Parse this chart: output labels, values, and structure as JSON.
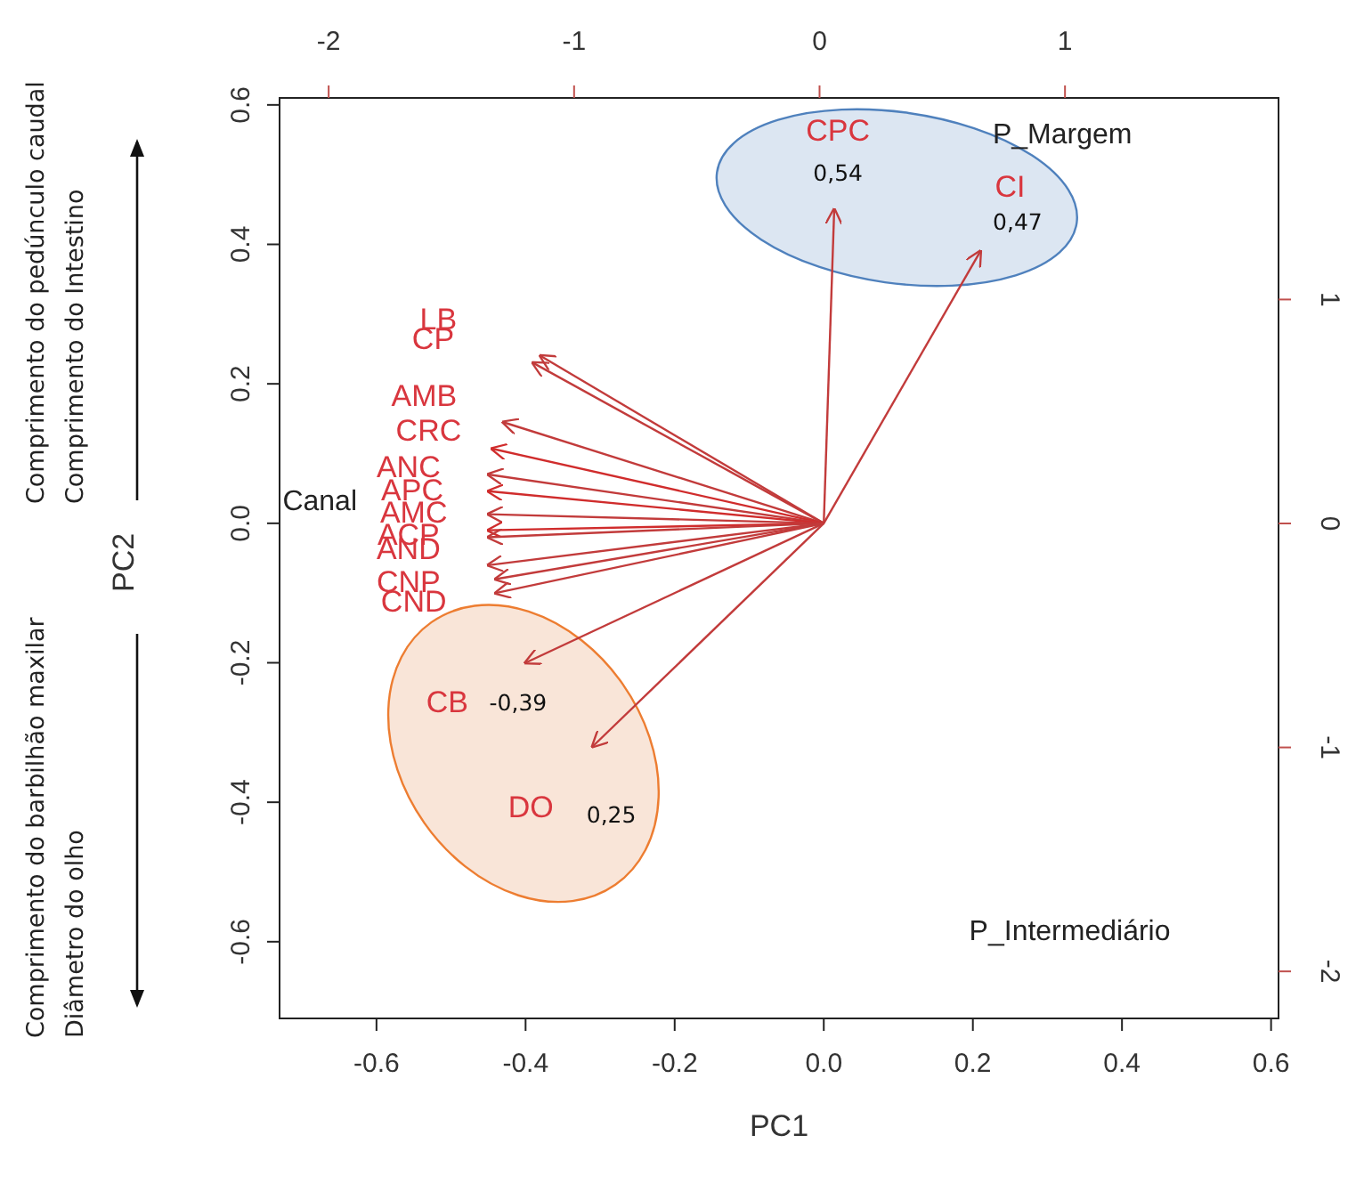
{
  "chart_data": {
    "type": "line",
    "xlabel": "PC1",
    "ylabel": "PC2",
    "xlim": [
      -0.73,
      0.61
    ],
    "ylim": [
      -0.71,
      0.61
    ],
    "xticks": [
      -0.6,
      -0.4,
      -0.2,
      {
        "value": 0,
        "label": "0.0"
      },
      0.2,
      0.4,
      0.6
    ],
    "yticks": [
      -0.6,
      -0.4,
      -0.2,
      {
        "value": 0,
        "label": "0.0"
      },
      0.2,
      0.4,
      0.6
    ],
    "x2lim": [
      -2.2,
      1.87
    ],
    "x2ticks": [
      -2,
      -1,
      0,
      1
    ],
    "y2lim": [
      -2.21,
      1.9
    ],
    "y2ticks": [
      -2,
      -1,
      0,
      1
    ],
    "series": [
      {
        "color": "#c23b3b",
        "x": [
          0,
          0.014
        ],
        "values": [
          0,
          0.45
        ]
      },
      {
        "color": "#c23b3b",
        "x": [
          0,
          0.21
        ],
        "values": [
          0,
          0.39
        ]
      },
      {
        "color": "#c23b3b",
        "x": [
          0,
          -0.4
        ],
        "values": [
          0,
          -0.2
        ]
      },
      {
        "color": "#c23b3b",
        "x": [
          0,
          -0.31
        ],
        "values": [
          0,
          -0.32
        ]
      },
      {
        "color": "#c23b3b",
        "x": [
          0,
          -0.39
        ],
        "values": [
          0,
          0.23
        ]
      },
      {
        "color": "#c23b3b",
        "x": [
          0,
          -0.38
        ],
        "values": [
          0,
          0.24
        ]
      },
      {
        "color": "#c23b3b",
        "x": [
          0,
          -0.43
        ],
        "values": [
          0,
          0.145
        ]
      },
      {
        "color": "#d02c2c",
        "x": [
          0,
          -0.445
        ],
        "values": [
          0,
          0.107
        ]
      },
      {
        "color": "#c23b3b",
        "x": [
          0,
          -0.45
        ],
        "values": [
          0,
          0.07
        ]
      },
      {
        "color": "#d02c2c",
        "x": [
          0,
          -0.45
        ],
        "values": [
          0,
          0.046
        ]
      },
      {
        "color": "#c23b3b",
        "x": [
          0,
          -0.45
        ],
        "values": [
          0,
          0.013
        ]
      },
      {
        "color": "#d02c2c",
        "x": [
          0,
          -0.45
        ],
        "values": [
          0,
          -0.01
        ]
      },
      {
        "color": "#c23b3b",
        "x": [
          0,
          -0.45
        ],
        "values": [
          0,
          -0.02
        ]
      },
      {
        "color": "#c23b3b",
        "x": [
          0,
          -0.45
        ],
        "values": [
          0,
          -0.06
        ]
      },
      {
        "color": "#c23b3b",
        "x": [
          0,
          -0.44
        ],
        "values": [
          0,
          -0.08
        ]
      },
      {
        "color": "#c23b3b",
        "x": [
          0,
          -0.44
        ],
        "values": [
          0,
          -0.1
        ]
      }
    ],
    "annotations": [
      "Comprimento do pedúnculo caudal",
      "Comprimento do Intestino",
      "Comprimento do barbilhão maxilar",
      "Diâmetro do olho",
      "Canal",
      "P_Margem",
      "P_Intermediário",
      "0,54",
      "0,47",
      "-0,39",
      "0,25",
      "CPC",
      "CI",
      "CB",
      "DO",
      "LB",
      "CP",
      "AMB",
      "CRC",
      "ANC",
      "APC",
      "AMC",
      "ACP",
      "AND",
      "CNP",
      "CND"
    ]
  }
}
